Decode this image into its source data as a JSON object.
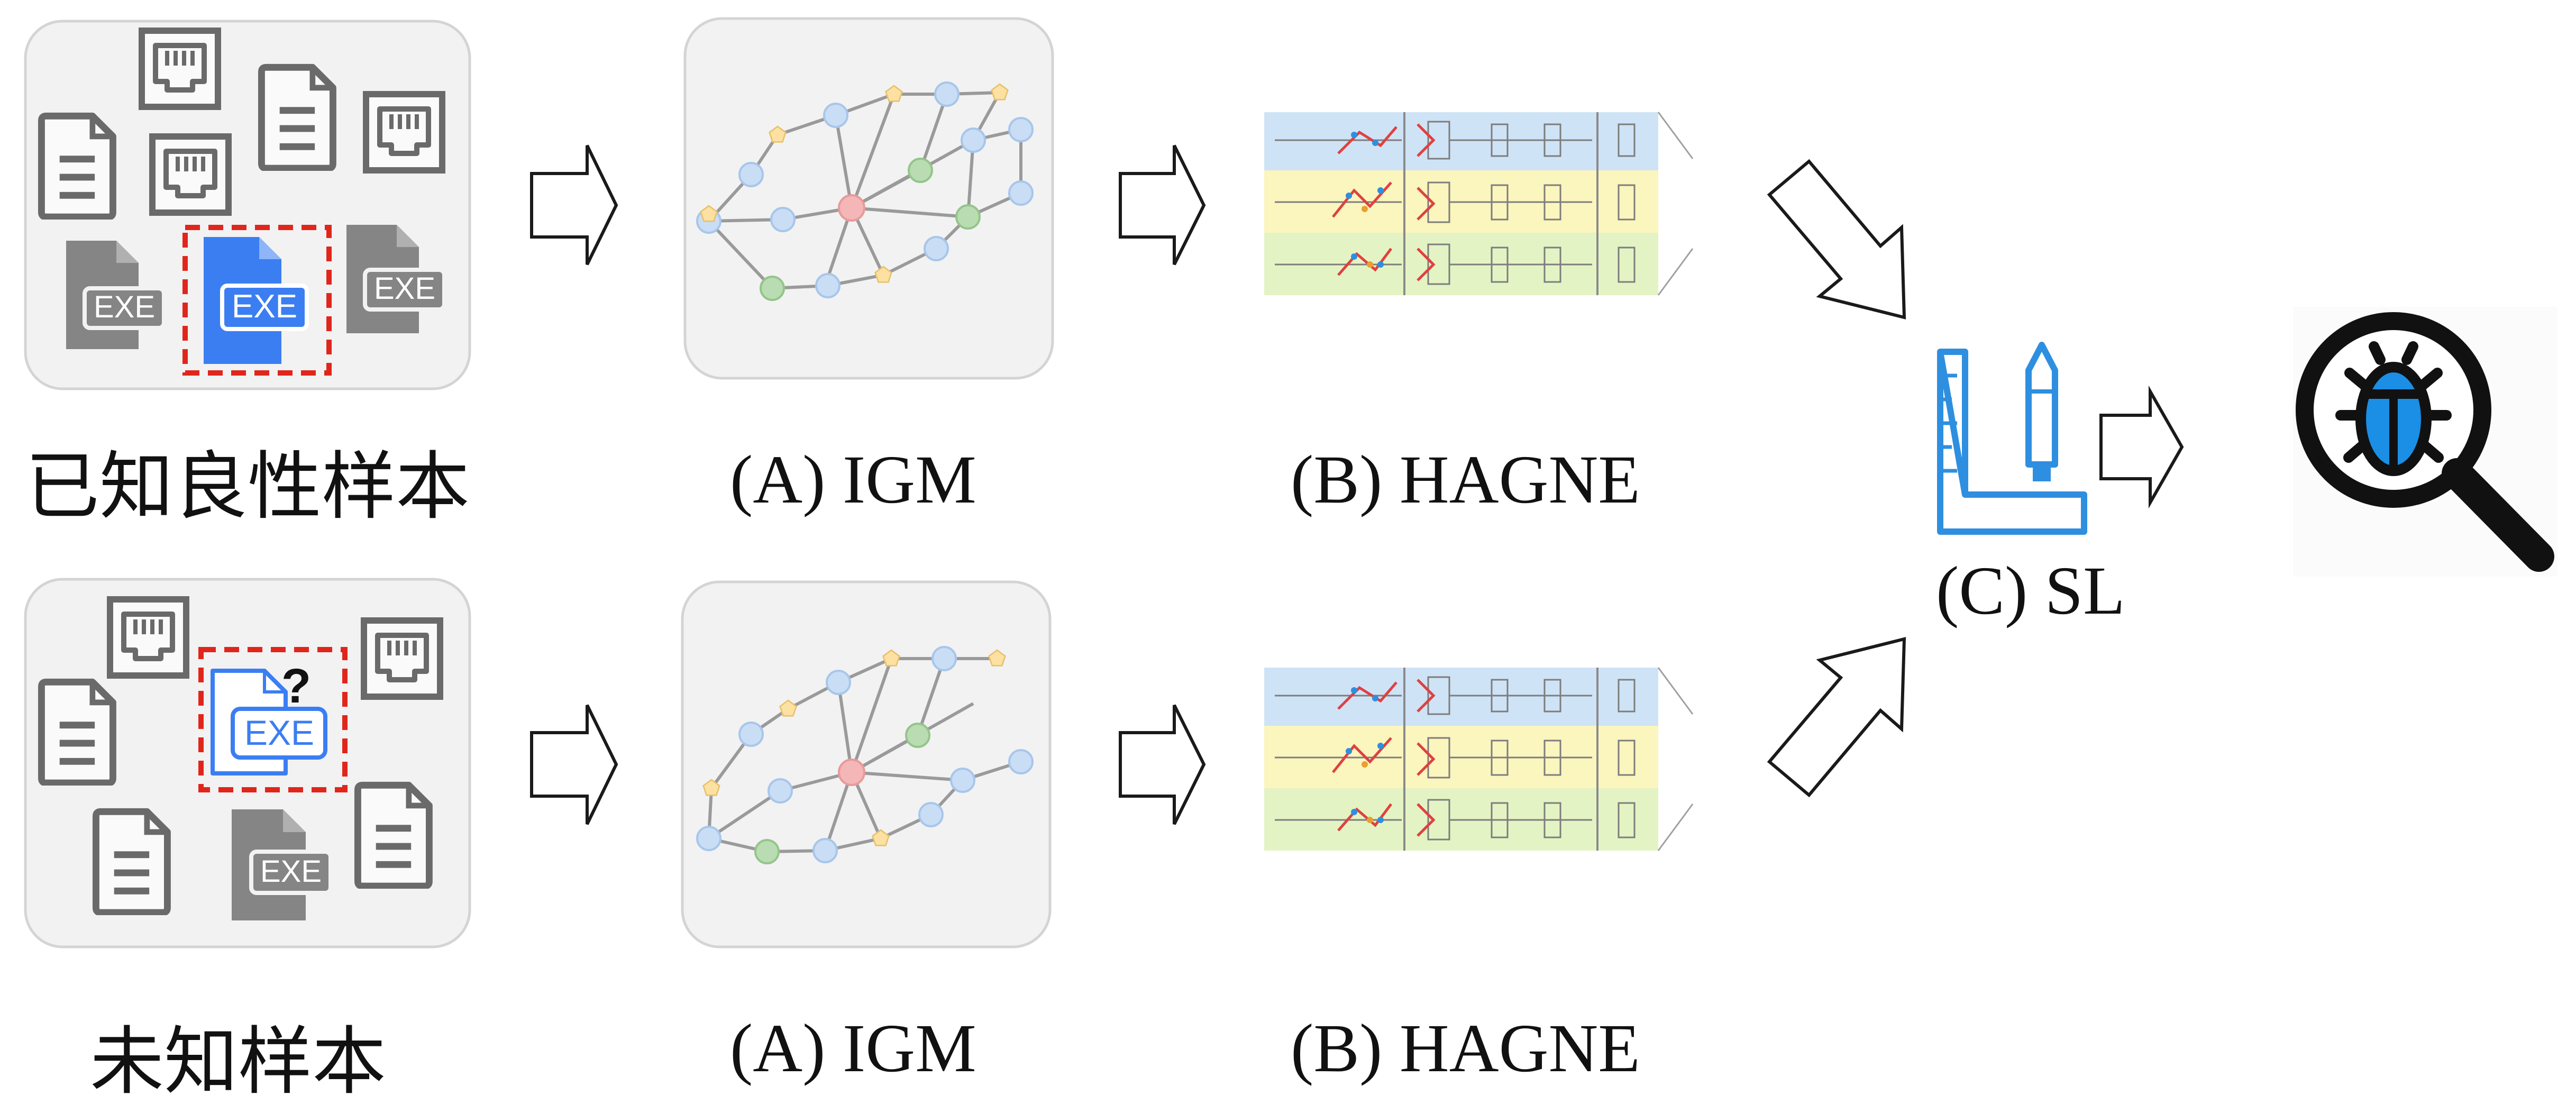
{
  "rows": [
    {
      "id": "known",
      "sample_label": "已知良性样本",
      "igm_label": "(A) IGM",
      "hagne_label": "(B) HAGNE"
    },
    {
      "id": "unknown",
      "sample_label": "未知样本",
      "igm_label": "(A) IGM",
      "hagne_label": "(B) HAGNE"
    }
  ],
  "sl_label": "(C) SL",
  "file_badge": "EXE",
  "unknown_mark": "?",
  "icons": {
    "document": "document-icon",
    "network_port": "ethernet-port-icon",
    "executable": "exe-file-icon",
    "graph": "graph-icon",
    "ruler_pencil": "ruler-pencil-icon",
    "magnifier_bug": "magnifier-bug-icon"
  },
  "colors": {
    "panel_bg": "#f2f2f3",
    "panel_border": "#d4d4d6",
    "highlight_dash": "#e0261b",
    "exe_blue": "#3b7ef2",
    "exe_gray": "#808080",
    "node_blue": "#c9def5",
    "node_yellow": "#fce1a2",
    "node_green": "#b9dcb2",
    "node_red": "#f4b6b6",
    "band_blue": "#cfe3f6",
    "band_yellow": "#fbf5be",
    "band_green": "#e4f3c4",
    "sl_blue": "#2e8fe0",
    "bug_blue": "#1a8fe5"
  }
}
